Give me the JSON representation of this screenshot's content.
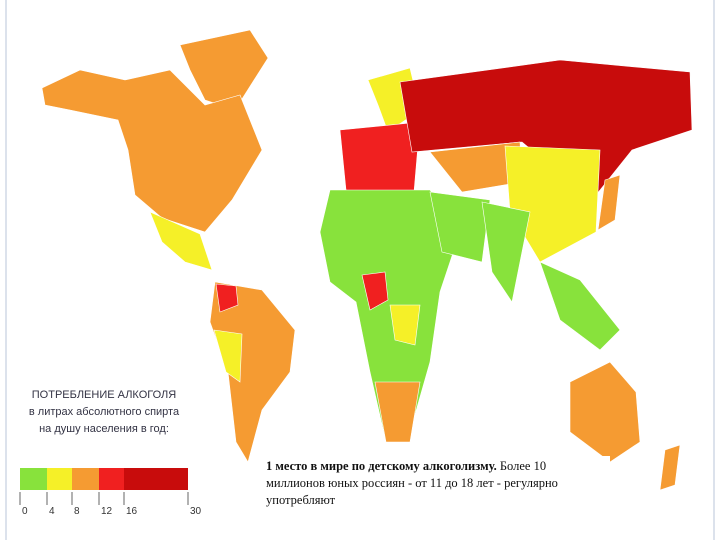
{
  "legend": {
    "title_lines": [
      "ПОТРЕБЛЕНИЕ АЛКОГОЛЯ",
      "в литрах абсолютного спирта",
      "на душу населения в год:"
    ],
    "ticks": [
      0,
      4,
      8,
      12,
      16,
      30
    ],
    "colors": [
      "#88e23c",
      "#f5f028",
      "#f59b32",
      "#f02020",
      "#c80c0c"
    ]
  },
  "caption": {
    "bold": "1 место в мире по детскому алкоголизму.",
    "text": "Более 10 миллионов юных россиян - от 11 до 18 лет - регулярно употребляют"
  }
}
